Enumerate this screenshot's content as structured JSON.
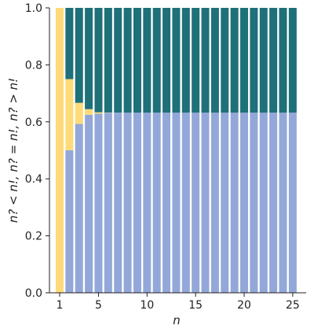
{
  "chart_data": {
    "type": "bar",
    "stacked": true,
    "x": [
      1,
      2,
      3,
      4,
      5,
      6,
      7,
      8,
      9,
      10,
      11,
      12,
      13,
      14,
      15,
      16,
      17,
      18,
      19,
      20,
      21,
      22,
      23,
      24,
      25
    ],
    "x_ticks": [
      "1",
      "5",
      "10",
      "15",
      "20",
      "25"
    ],
    "y_ticks": [
      "0.0",
      "0.2",
      "0.4",
      "0.6",
      "0.8",
      "1.0"
    ],
    "xlabel": "n",
    "ylabel": "n? < n!, n? = n!, n? > n!",
    "ylim": [
      0,
      1
    ],
    "grid": false,
    "colors": {
      "less": "#93a8d8",
      "equal": "#fedb78",
      "greater": "#1e7079"
    },
    "series": [
      {
        "key": "less",
        "values": [
          0,
          0.5,
          0.5926,
          0.625,
          0.6288,
          0.6319,
          0.6321,
          0.6321,
          0.6321,
          0.6321,
          0.6321,
          0.6321,
          0.6321,
          0.6321,
          0.6321,
          0.6321,
          0.6321,
          0.6321,
          0.6321,
          0.6321,
          0.6321,
          0.6321,
          0.6321,
          0.6321,
          0.6321
        ]
      },
      {
        "key": "equal",
        "values": [
          1,
          0.25,
          0.0741,
          0.0195,
          0.0047,
          0.0008,
          0.0002,
          0,
          0,
          0,
          0,
          0,
          0,
          0,
          0,
          0,
          0,
          0,
          0,
          0,
          0,
          0,
          0,
          0,
          0
        ]
      },
      {
        "key": "greater",
        "values": [
          0,
          0.25,
          0.3333,
          0.3555,
          0.3665,
          0.3673,
          0.3677,
          0.3679,
          0.3679,
          0.3679,
          0.3679,
          0.3679,
          0.3679,
          0.3679,
          0.3679,
          0.3679,
          0.3679,
          0.3679,
          0.3679,
          0.3679,
          0.3679,
          0.3679,
          0.3679,
          0.3679,
          0.3679
        ]
      }
    ]
  }
}
